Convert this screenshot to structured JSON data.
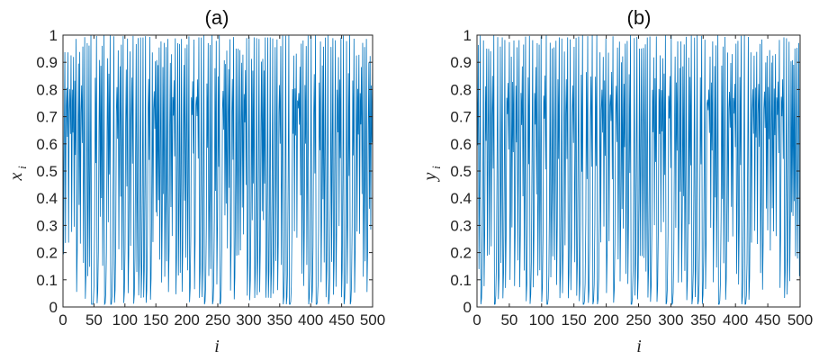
{
  "chart_data": [
    {
      "type": "line",
      "title": "(a)",
      "xlabel": "i",
      "ylabel_main": "x",
      "ylabel_sub": "i",
      "xlim": [
        0,
        500
      ],
      "ylim": [
        0,
        1
      ],
      "xticks": [
        0,
        50,
        100,
        150,
        200,
        250,
        300,
        350,
        400,
        450,
        500
      ],
      "yticks": [
        0,
        0.1,
        0.2,
        0.3,
        0.4,
        0.5,
        0.6,
        0.7,
        0.8,
        0.9,
        1
      ],
      "ytick_labels": [
        "0",
        "0.1",
        "0.2",
        "0.3",
        "0.4",
        "0.5",
        "0.6",
        "0.7",
        "0.8",
        "0.9",
        "1"
      ],
      "grid": false,
      "series": [
        {
          "color": "#0072bd",
          "sample_points": 500,
          "y_min": 0.01,
          "y_max": 0.999
        }
      ]
    },
    {
      "type": "line",
      "title": "(b)",
      "xlabel": "i",
      "ylabel_main": "y",
      "ylabel_sub": "i",
      "xlim": [
        0,
        500
      ],
      "ylim": [
        0,
        1
      ],
      "xticks": [
        0,
        50,
        100,
        150,
        200,
        250,
        300,
        350,
        400,
        450,
        500
      ],
      "yticks": [
        0,
        0.1,
        0.2,
        0.3,
        0.4,
        0.5,
        0.6,
        0.7,
        0.8,
        0.9,
        1
      ],
      "ytick_labels": [
        "0",
        "0.1",
        "0.2",
        "0.3",
        "0.4",
        "0.5",
        "0.6",
        "0.7",
        "0.8",
        "0.9",
        "1"
      ],
      "grid": false,
      "series": [
        {
          "color": "#0072bd",
          "sample_points": 500,
          "y_min": 0.01,
          "y_max": 0.999
        }
      ]
    }
  ]
}
